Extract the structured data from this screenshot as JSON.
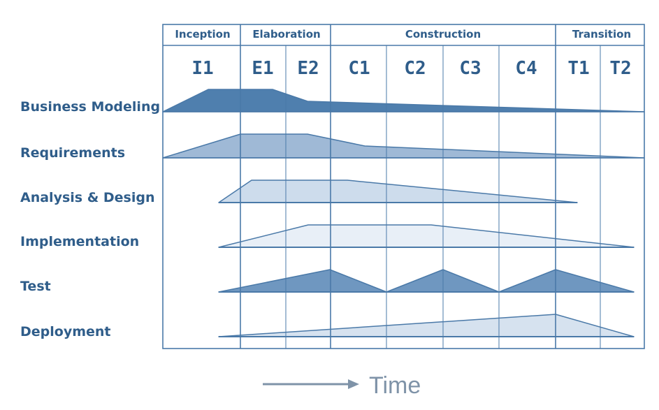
{
  "phases": [
    {
      "id": "inception",
      "label": "Inception"
    },
    {
      "id": "elaboration",
      "label": "Elaboration"
    },
    {
      "id": "construction",
      "label": "Construction"
    },
    {
      "id": "transition",
      "label": "Transition"
    }
  ],
  "iterations": [
    "I1",
    "E1",
    "E2",
    "C1",
    "C2",
    "C3",
    "C4",
    "T1",
    "T2"
  ],
  "disciplines": [
    {
      "id": "business-modeling",
      "label": "Business Modeling",
      "color": "#4f7fae"
    },
    {
      "id": "requirements",
      "label": "Requirements",
      "color": "#9fb9d6"
    },
    {
      "id": "analysis-design",
      "label": "Analysis & Design",
      "color": "#cddcec"
    },
    {
      "id": "implementation",
      "label": "Implementation",
      "color": "#e8eff7"
    },
    {
      "id": "test",
      "label": "Test",
      "color": "#6f97c0"
    },
    {
      "id": "deployment",
      "label": "Deployment",
      "color": "#d6e2ef"
    }
  ],
  "axis": {
    "label": "Time"
  },
  "colors": {
    "frame": "#4a79a8",
    "text": "#2f5d8a",
    "time_arrow": "#7f93a8"
  }
}
